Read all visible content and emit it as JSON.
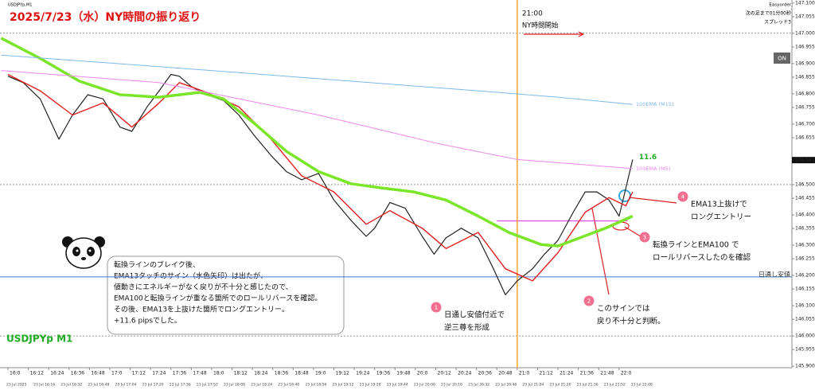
{
  "chart_data": {
    "type": "line",
    "symbol": "USDJPYp,M1",
    "title": "2025/7/23（水）NY時間の振り返り",
    "watermark": "USDJPYp M1",
    "top_right": [
      "Easyorder",
      "次の足まで01分00秒",
      "スプレッド3"
    ],
    "button": "ON",
    "xlim": [
      -4.7,
      461.8
    ],
    "ylim": [
      145.895,
      147.11
    ],
    "xticks": [
      {
        "value": 0,
        "label": "16:0"
      },
      {
        "value": 12,
        "label": "16:12"
      },
      {
        "value": 24,
        "label": "16:24"
      },
      {
        "value": 36,
        "label": "16:36"
      },
      {
        "value": 48,
        "label": "16:48"
      },
      {
        "value": 60,
        "label": "17:0"
      },
      {
        "value": 72,
        "label": "17:12"
      },
      {
        "value": 84,
        "label": "17:24"
      },
      {
        "value": 96,
        "label": "17:36"
      },
      {
        "value": 108,
        "label": "17:48"
      },
      {
        "value": 120,
        "label": "18:0"
      },
      {
        "value": 132,
        "label": "18:12"
      },
      {
        "value": 144,
        "label": "18:24"
      },
      {
        "value": 156,
        "label": "18:36"
      },
      {
        "value": 168,
        "label": "18:48"
      },
      {
        "value": 180,
        "label": "19:0"
      },
      {
        "value": 192,
        "label": "19:12"
      },
      {
        "value": 204,
        "label": "19:24"
      },
      {
        "value": 216,
        "label": "19:36"
      },
      {
        "value": 228,
        "label": "19:48"
      },
      {
        "value": 240,
        "label": "20:0"
      },
      {
        "value": 252,
        "label": "20:12"
      },
      {
        "value": 264,
        "label": "20:24"
      },
      {
        "value": 276,
        "label": "20:36"
      },
      {
        "value": 288,
        "label": "20:48"
      },
      {
        "value": 300,
        "label": "21:0"
      },
      {
        "value": 312,
        "label": "21:12"
      },
      {
        "value": 324,
        "label": "21:24"
      },
      {
        "value": 336,
        "label": "21:36"
      },
      {
        "value": 348,
        "label": "21:48"
      },
      {
        "value": 360,
        "label": "22:0"
      }
    ],
    "date_labels": [
      "23 Jul 2025",
      "23 Jul 16:16",
      "23 Jul 16:32",
      "23 Jul 16:48",
      "23 Jul 17:04",
      "23 Jul 17:20",
      "23 Jul 17:36",
      "23 Jul 17:52",
      "23 Jul 18:08",
      "23 Jul 18:24",
      "23 Jul 18:40",
      "23 Jul 18:56",
      "23 Jul 19:12",
      "23 Jul 19:28",
      "23 Jul 19:44",
      "23 Jul 20:00",
      "23 Jul 20:16",
      "23 Jul 20:32",
      "23 Jul 20:48",
      "23 Jul 21:04",
      "23 Jul 21:20",
      "23 Jul 21:36",
      "23 Jul 21:52",
      "23 Jul 22:08"
    ],
    "yticks": [
      {
        "value": 147.1,
        "label": "147.100"
      },
      {
        "value": 147.055,
        "label": "147.055"
      },
      {
        "value": 147.0,
        "label": "147.000"
      },
      {
        "value": 146.955,
        "label": "146.955"
      },
      {
        "value": 146.9,
        "label": "146.900"
      },
      {
        "value": 146.855,
        "label": "146.855"
      },
      {
        "value": 146.8,
        "label": "146.800"
      },
      {
        "value": 146.755,
        "label": "146.755"
      },
      {
        "value": 146.7,
        "label": "146.700"
      },
      {
        "value": 146.655,
        "label": "146.655"
      },
      {
        "value": 146.5,
        "label": "146.500"
      },
      {
        "value": 146.455,
        "label": "146.455"
      },
      {
        "value": 146.4,
        "label": "146.400"
      },
      {
        "value": 146.355,
        "label": "146.355"
      },
      {
        "value": 146.3,
        "label": "146.300"
      },
      {
        "value": 146.255,
        "label": "146.255"
      },
      {
        "value": 146.2,
        "label": "146.200"
      },
      {
        "value": 146.155,
        "label": "146.155"
      },
      {
        "value": 146.1,
        "label": "146.100"
      },
      {
        "value": 146.055,
        "label": "146.055"
      },
      {
        "value": 146.0,
        "label": "146.000"
      },
      {
        "value": 145.955,
        "label": "145.955"
      },
      {
        "value": 145.9,
        "label": "145.900"
      }
    ],
    "current_price": 146.581,
    "dashed_levels": [
      147.0,
      146.5,
      146.0
    ],
    "low_line": {
      "value": 146.195,
      "label": "日通し安値",
      "color": "#3a7bd5"
    },
    "turn_line": {
      "value": 146.38,
      "from": 288,
      "to": 365,
      "color": "#e040e0"
    },
    "ny_start": {
      "value": 300,
      "time": "21:00",
      "label": "NY時間開始",
      "color": "#f5a623"
    },
    "pips": 11.6,
    "series": [
      {
        "color": "#222222",
        "width": 1.2,
        "x": [
          0,
          9,
          19,
          30,
          38,
          47,
          56,
          66,
          73,
          82,
          89,
          96,
          101,
          108,
          117,
          127,
          136,
          145,
          155,
          164,
          173,
          183,
          192,
          202,
          211,
          216,
          225,
          234,
          244,
          251,
          258,
          267,
          277,
          286,
          293,
          300,
          309,
          316,
          324,
          333,
          340,
          347,
          354,
          360,
          364,
          368
        ],
        "values": [
          146.858,
          146.837,
          146.783,
          146.65,
          146.73,
          146.797,
          146.783,
          146.69,
          146.676,
          146.757,
          146.81,
          146.864,
          146.858,
          146.824,
          146.797,
          146.778,
          146.73,
          146.663,
          146.596,
          146.543,
          146.516,
          146.537,
          146.449,
          146.382,
          146.329,
          146.356,
          146.441,
          146.422,
          146.329,
          146.27,
          146.324,
          146.356,
          146.324,
          146.222,
          146.136,
          146.182,
          146.222,
          146.27,
          146.316,
          146.409,
          146.476,
          146.476,
          146.449,
          146.396,
          146.489,
          146.583
        ]
      },
      {
        "color": "#e02020",
        "width": 1.4,
        "x": [
          0,
          19,
          38,
          56,
          73,
          89,
          101,
          117,
          136,
          155,
          173,
          192,
          211,
          225,
          244,
          258,
          277,
          293,
          309,
          324,
          340,
          354,
          364,
          368
        ],
        "values": [
          146.864,
          146.81,
          146.73,
          146.77,
          146.69,
          146.77,
          146.837,
          146.805,
          146.757,
          146.65,
          146.529,
          146.476,
          146.369,
          146.414,
          146.356,
          146.289,
          146.342,
          146.222,
          146.182,
          146.275,
          146.409,
          146.457,
          146.43,
          146.476
        ]
      },
      {
        "color": "#7be52a",
        "width": 3.5,
        "x": [
          -4,
          19,
          42,
          66,
          89,
          113,
          127,
          145,
          164,
          183,
          202,
          220,
          239,
          258,
          277,
          295,
          314,
          324,
          333,
          352,
          368
        ],
        "values": [
          146.984,
          146.917,
          146.842,
          146.797,
          146.789,
          146.805,
          146.783,
          146.703,
          146.61,
          146.543,
          146.503,
          146.489,
          146.476,
          146.449,
          146.396,
          146.342,
          146.302,
          146.297,
          146.316,
          146.356,
          146.396
        ]
      },
      {
        "name": "100EMA (M15)",
        "color": "#7fb8e8",
        "width": 1,
        "x": [
          -4,
          89,
          183,
          277,
          324,
          368
        ],
        "values": [
          146.928,
          146.89,
          146.85,
          146.81,
          146.789,
          146.765
        ]
      },
      {
        "name": "100EMA (M5)",
        "color": "#ee88ee",
        "width": 1,
        "x": [
          -4,
          89,
          183,
          253,
          300,
          368
        ],
        "values": [
          146.877,
          146.837,
          146.73,
          146.636,
          146.583,
          146.553
        ]
      }
    ],
    "box_text": [
      "転換ラインのブレイク後、",
      "EMA13タッチのサイン（水色矢印）は出たが、",
      "値動きにエネルギーがなく戻りが不十分と感じたので、",
      "EMA100と転換ラインが重なる箇所でのロールリバースを確認。",
      "その後、EMA13を上抜けた箇所でロングエントリー。",
      "+11.6 pipsでした。"
    ],
    "callouts": [
      {
        "number": 1,
        "lines": [
          "日通し安値付近で",
          "逆三尊を形成"
        ]
      },
      {
        "number": 2,
        "lines": [
          "このサインでは",
          "戻り不十分と判断。"
        ]
      },
      {
        "number": 3,
        "lines": [
          "転換ラインとEMA100 で",
          "ロールリバースしたのを確認"
        ]
      },
      {
        "number": 4,
        "lines": [
          "EMA13上抜けで",
          "ロングエントリー"
        ]
      }
    ]
  }
}
